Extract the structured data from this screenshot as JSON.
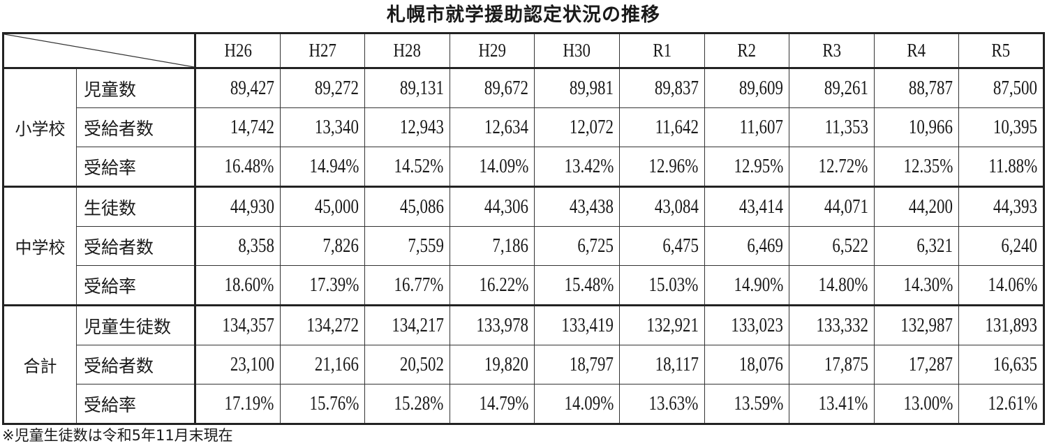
{
  "title": "札幌市就学援助認定状況の推移",
  "table": {
    "columns": [
      "H26",
      "H27",
      "H28",
      "H29",
      "H30",
      "R1",
      "R2",
      "R3",
      "R4",
      "R5"
    ],
    "groups": [
      {
        "name": "小学校",
        "rows": [
          {
            "label": "児童数",
            "values": [
              "89,427",
              "89,272",
              "89,131",
              "89,672",
              "89,981",
              "89,837",
              "89,609",
              "89,261",
              "88,787",
              "87,500"
            ]
          },
          {
            "label": "受給者数",
            "values": [
              "14,742",
              "13,340",
              "12,943",
              "12,634",
              "12,072",
              "11,642",
              "11,607",
              "11,353",
              "10,966",
              "10,395"
            ]
          },
          {
            "label": "受給率",
            "values": [
              "16.48%",
              "14.94%",
              "14.52%",
              "14.09%",
              "13.42%",
              "12.96%",
              "12.95%",
              "12.72%",
              "12.35%",
              "11.88%"
            ]
          }
        ]
      },
      {
        "name": "中学校",
        "rows": [
          {
            "label": "生徒数",
            "values": [
              "44,930",
              "45,000",
              "45,086",
              "44,306",
              "43,438",
              "43,084",
              "43,414",
              "44,071",
              "44,200",
              "44,393"
            ]
          },
          {
            "label": "受給者数",
            "values": [
              "8,358",
              "7,826",
              "7,559",
              "7,186",
              "6,725",
              "6,475",
              "6,469",
              "6,522",
              "6,321",
              "6,240"
            ]
          },
          {
            "label": "受給率",
            "values": [
              "18.60%",
              "17.39%",
              "16.77%",
              "16.22%",
              "15.48%",
              "15.03%",
              "14.90%",
              "14.80%",
              "14.30%",
              "14.06%"
            ]
          }
        ]
      },
      {
        "name": "合計",
        "rows": [
          {
            "label": "児童生徒数",
            "values": [
              "134,357",
              "134,272",
              "134,217",
              "133,978",
              "133,419",
              "132,921",
              "133,023",
              "133,332",
              "132,987",
              "131,893"
            ]
          },
          {
            "label": "受給者数",
            "values": [
              "23,100",
              "21,166",
              "20,502",
              "19,820",
              "18,797",
              "18,117",
              "18,076",
              "17,875",
              "17,287",
              "16,635"
            ]
          },
          {
            "label": "受給率",
            "values": [
              "17.19%",
              "15.76%",
              "15.28%",
              "14.79%",
              "14.09%",
              "13.63%",
              "13.59%",
              "13.41%",
              "13.00%",
              "12.61%"
            ]
          }
        ]
      }
    ]
  },
  "footnote": "※児童生徒数は令和5年11月末現在"
}
